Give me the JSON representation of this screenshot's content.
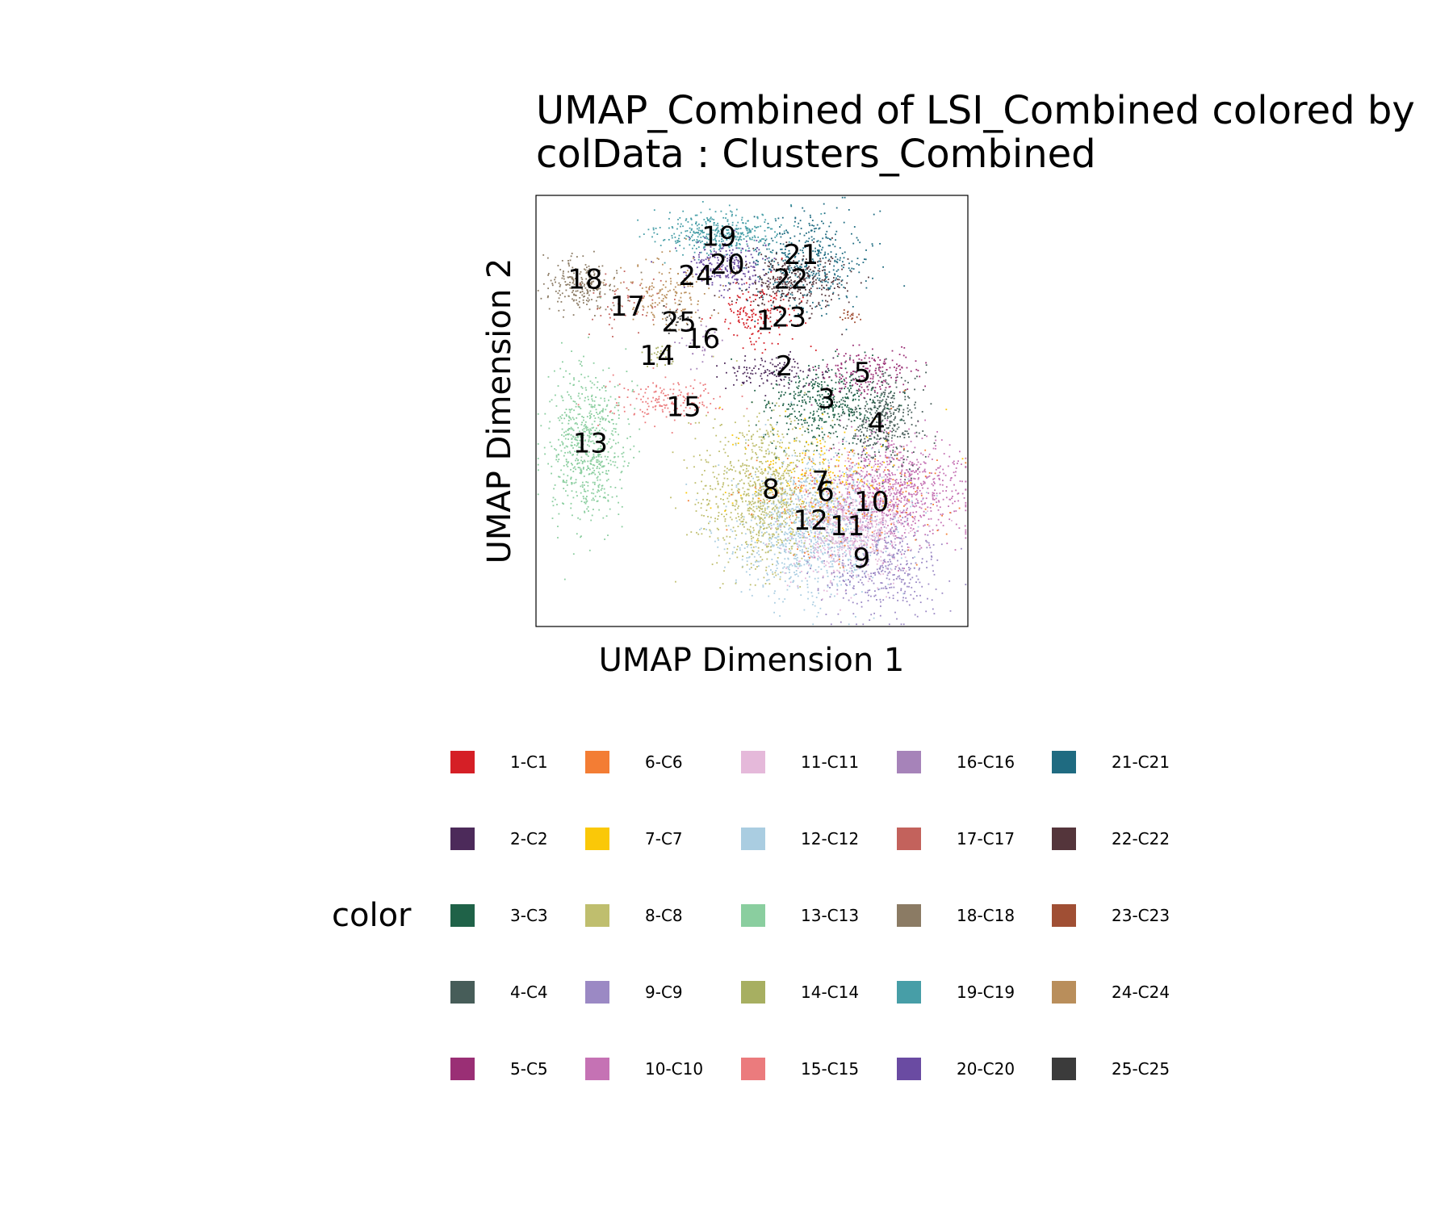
{
  "chart_data": {
    "type": "scatter",
    "title": "UMAP_Combined of LSI_Combined  colored by\ncolData :  Clusters_Combined",
    "xlabel": "UMAP Dimension 1",
    "ylabel": "UMAP Dimension 2",
    "xlim": [
      0,
      100
    ],
    "ylim": [
      0,
      100
    ],
    "grid": false,
    "legend": {
      "title": "color",
      "placement": "bottom",
      "columns": 5
    },
    "clusters": [
      {
        "id": "1",
        "name": "1-C1",
        "color": "#D51F26",
        "center": [
          52,
          72
        ],
        "spread": [
          4.5,
          3.5
        ],
        "count": 160
      },
      {
        "id": "2",
        "name": "2-C2",
        "color": "#4C2A5A",
        "center": [
          55,
          59
        ],
        "spread": [
          5.5,
          1.8
        ],
        "count": 130
      },
      {
        "id": "3",
        "name": "3-C3",
        "color": "#1F6248",
        "center": [
          67,
          52
        ],
        "spread": [
          7.0,
          4.5
        ],
        "count": 420
      },
      {
        "id": "4",
        "name": "4-C4",
        "color": "#475D59",
        "center": [
          80,
          48
        ],
        "spread": [
          4.5,
          5.5
        ],
        "count": 380
      },
      {
        "id": "5",
        "name": "5-C5",
        "color": "#9A2F75",
        "center": [
          77,
          59
        ],
        "spread": [
          5.0,
          3.0
        ],
        "count": 180
      },
      {
        "id": "6",
        "name": "6-C6",
        "color": "#F37D34",
        "center": [
          72,
          30
        ],
        "spread": [
          11,
          7
        ],
        "count": 200
      },
      {
        "id": "7",
        "name": "7-C7",
        "color": "#FAC808",
        "center": [
          66,
          36
        ],
        "spread": [
          10,
          6
        ],
        "count": 150
      },
      {
        "id": "8",
        "name": "8-C8",
        "color": "#BFBE6E",
        "center": [
          53,
          31
        ],
        "spread": [
          7.5,
          8.5
        ],
        "count": 900
      },
      {
        "id": "9",
        "name": "9-C9",
        "color": "#9B89C4",
        "center": [
          80,
          14
        ],
        "spread": [
          6.5,
          6
        ],
        "count": 380
      },
      {
        "id": "10",
        "name": "10-C10",
        "color": "#C572B4",
        "center": [
          83,
          32
        ],
        "spread": [
          8,
          6
        ],
        "count": 850
      },
      {
        "id": "11",
        "name": "11-C11",
        "color": "#E5B9DA",
        "center": [
          73,
          22
        ],
        "spread": [
          7,
          6
        ],
        "count": 700
      },
      {
        "id": "12",
        "name": "12-C12",
        "color": "#AACDE1",
        "center": [
          64,
          23
        ],
        "spread": [
          9,
          8
        ],
        "count": 1200
      },
      {
        "id": "13",
        "name": "13-C13",
        "color": "#8ACE9F",
        "center": [
          12,
          42
        ],
        "spread": [
          4.5,
          9
        ],
        "count": 650
      },
      {
        "id": "14",
        "name": "14-C14",
        "color": "#A7AF61",
        "center": [
          29,
          63
        ],
        "spread": [
          1.8,
          1.2
        ],
        "count": 25
      },
      {
        "id": "15",
        "name": "15-C15",
        "color": "#EB7B7D",
        "center": [
          30,
          52
        ],
        "spread": [
          7,
          2.5
        ],
        "count": 160
      },
      {
        "id": "16",
        "name": "16-C16",
        "color": "#A683B9",
        "center": [
          37,
          66
        ],
        "spread": [
          3,
          3
        ],
        "count": 35
      },
      {
        "id": "17",
        "name": "17-C17",
        "color": "#C3625C",
        "center": [
          21,
          75
        ],
        "spread": [
          6,
          3
        ],
        "count": 60
      },
      {
        "id": "18",
        "name": "18-C18",
        "color": "#8B7B64",
        "center": [
          11,
          79
        ],
        "spread": [
          4,
          3
        ],
        "count": 230
      },
      {
        "id": "19",
        "name": "19-C19",
        "color": "#479EA7",
        "center": [
          42,
          91
        ],
        "spread": [
          7,
          2.5
        ],
        "count": 380
      },
      {
        "id": "20",
        "name": "20-C20",
        "color": "#6A4BA2",
        "center": [
          44,
          84
        ],
        "spread": [
          5,
          2.8
        ],
        "count": 220
      },
      {
        "id": "21",
        "name": "21-C21",
        "color": "#1F6B81",
        "center": [
          63,
          85
        ],
        "spread": [
          6.5,
          5.5
        ],
        "count": 420
      },
      {
        "id": "22",
        "name": "22-C22",
        "color": "#54353B",
        "center": [
          60,
          80
        ],
        "spread": [
          6,
          3.5
        ],
        "count": 320
      },
      {
        "id": "23",
        "name": "23-C23",
        "color": "#A04F34",
        "center": [
          73,
          72
        ],
        "spread": [
          1.5,
          0.8
        ],
        "count": 20
      },
      {
        "id": "24",
        "name": "24-C24",
        "color": "#B98E5B",
        "center": [
          30,
          78
        ],
        "spread": [
          6,
          4
        ],
        "count": 160
      },
      {
        "id": "25",
        "name": "25-C25",
        "color": "#3B3B3B",
        "center": [
          33,
          71
        ],
        "spread": [
          2,
          1.2
        ],
        "count": 30
      }
    ],
    "cluster_labels": [
      {
        "text": "1",
        "x": 53.0,
        "y": 71.1
      },
      {
        "text": "2",
        "x": 57.5,
        "y": 60.5
      },
      {
        "text": "3",
        "x": 67.3,
        "y": 52.9
      },
      {
        "text": "4",
        "x": 78.9,
        "y": 47.3
      },
      {
        "text": "5",
        "x": 75.6,
        "y": 59.0
      },
      {
        "text": "6",
        "x": 67.1,
        "y": 31.4
      },
      {
        "text": "7",
        "x": 65.9,
        "y": 33.8
      },
      {
        "text": "8",
        "x": 54.4,
        "y": 31.9
      },
      {
        "text": "9",
        "x": 75.4,
        "y": 15.9
      },
      {
        "text": "10",
        "x": 77.7,
        "y": 29.0
      },
      {
        "text": "11",
        "x": 72.1,
        "y": 23.4
      },
      {
        "text": "12",
        "x": 63.6,
        "y": 24.7
      },
      {
        "text": "13",
        "x": 12.6,
        "y": 42.6
      },
      {
        "text": "14",
        "x": 28.1,
        "y": 62.9
      },
      {
        "text": "15",
        "x": 34.2,
        "y": 51.0
      },
      {
        "text": "16",
        "x": 38.6,
        "y": 66.9
      },
      {
        "text": "17",
        "x": 21.2,
        "y": 74.3
      },
      {
        "text": "18",
        "x": 11.4,
        "y": 80.6
      },
      {
        "text": "19",
        "x": 42.4,
        "y": 90.5
      },
      {
        "text": "20",
        "x": 44.3,
        "y": 84.1
      },
      {
        "text": "21",
        "x": 61.4,
        "y": 86.3
      },
      {
        "text": "22",
        "x": 59.0,
        "y": 80.6
      },
      {
        "text": "23",
        "x": 58.6,
        "y": 71.8
      },
      {
        "text": "24",
        "x": 37.0,
        "y": 81.5
      },
      {
        "text": "25",
        "x": 33.1,
        "y": 70.7
      }
    ]
  }
}
